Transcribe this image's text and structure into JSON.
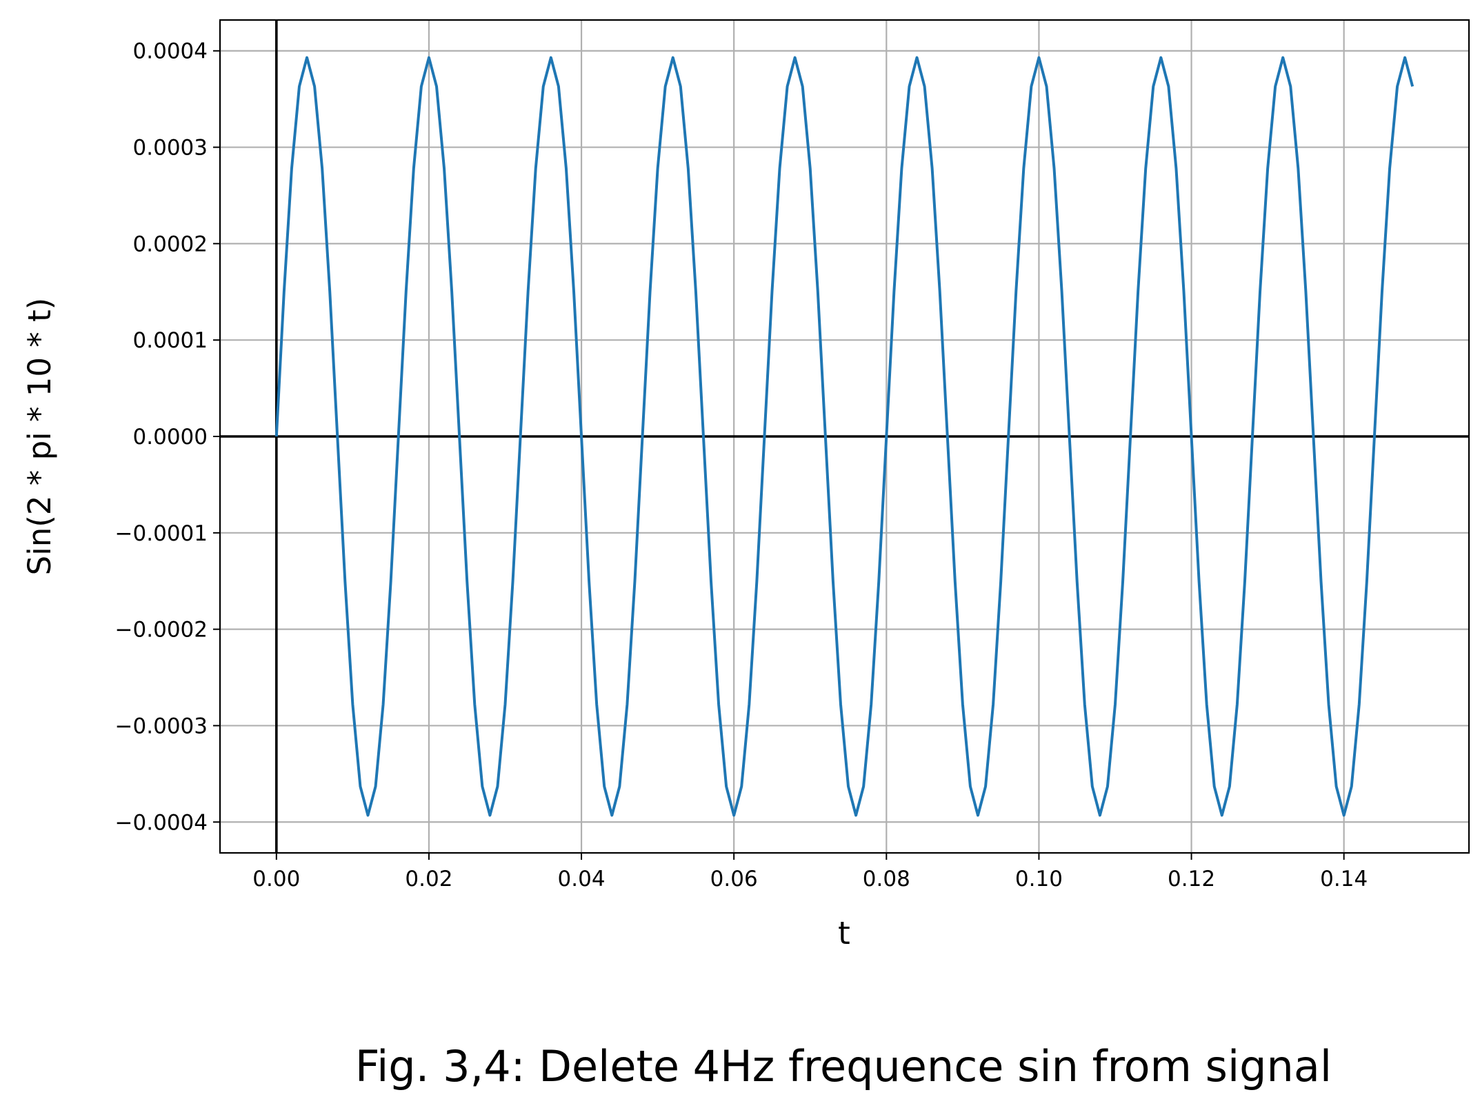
{
  "chart_data": {
    "type": "line",
    "caption": "Fig. 3,4: Delete 4Hz frequence sin from signal",
    "xlabel": "t",
    "ylabel": "Sin(2 * pi * 10 * t)",
    "xlim": [
      -0.0074,
      0.1564
    ],
    "ylim": [
      -0.000432,
      0.000432
    ],
    "xticks": [
      0.0,
      0.02,
      0.04,
      0.06,
      0.08,
      0.1,
      0.12,
      0.14
    ],
    "xtick_labels": [
      "0.00",
      "0.02",
      "0.04",
      "0.06",
      "0.08",
      "0.10",
      "0.12",
      "0.14"
    ],
    "yticks": [
      0.0004,
      0.0003,
      0.0002,
      0.0001,
      0.0,
      -0.0001,
      -0.0002,
      -0.0003,
      -0.0004
    ],
    "ytick_labels": [
      "0.0004",
      "0.0003",
      "0.0002",
      "0.0001",
      "0.0000",
      "−0.0001",
      "−0.0002",
      "−0.0003",
      "−0.0004"
    ],
    "grid": true,
    "reference_lines": {
      "x": 0,
      "y": 0
    },
    "series": [
      {
        "color": "#1f77b4",
        "signal": {
          "amplitude": 0.000393,
          "frequency_hz": 62.5,
          "sample_interval": 0.001,
          "t_start": 0.0,
          "t_end": 0.149
        }
      }
    ]
  }
}
